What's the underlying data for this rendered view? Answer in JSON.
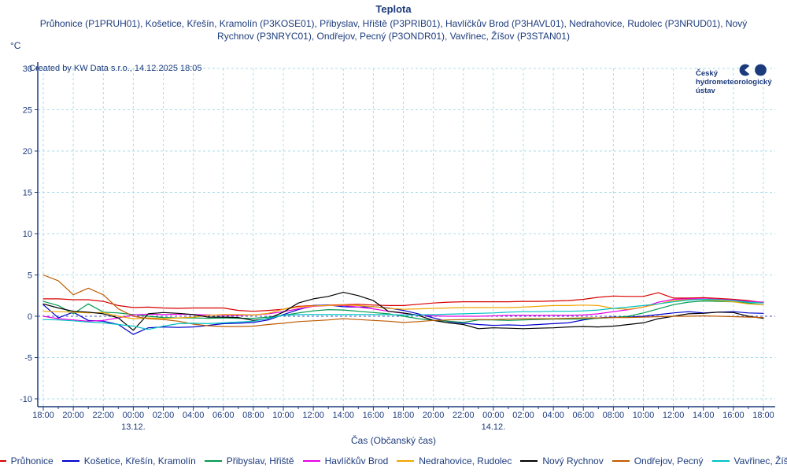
{
  "title": "Teplota",
  "subtitle": "Průhonice (P1PRUH01), Košetice, Křešín, Kramolín (P3KOSE01), Přibyslav, Hřiště (P3PRIB01), Havlíčkův Brod (P3HAVL01), Nedrahovice, Rudolec (P3NRUD01), Nový Rychnov (P3NRYC01), Ondřejov, Pecný (P3ONDR01), Vavřinec, Žíšov (P3STAN01)",
  "y_unit": "°C",
  "created_by": "Created by KW Data s.r.o., 14.12.2025 18:05",
  "logo": {
    "line1": "Český",
    "line2": "hydrometeorologický",
    "line3": "ústav",
    "color": "#1c3b7c"
  },
  "colors": {
    "text_navy": "#1c3b7c",
    "axis": "#1c3b7c",
    "grid": "#aadcea",
    "zero_line": "#4053cc",
    "background": "#ffffff"
  },
  "chart_data": {
    "type": "line",
    "title": "Teplota",
    "xlabel": "Čas (Občanský čas)",
    "ylabel": "°C",
    "ylim": [
      -10,
      30
    ],
    "grid": true,
    "legend_position": "bottom",
    "x_range_hours": 48,
    "sampling": "hourly values, t=0 at 18:00 of 12.12., t=48 at 18:00 of 14.12.",
    "x_tick_labels": [
      "18:00",
      "20:00",
      "22:00",
      "00:00",
      "02:00",
      "04:00",
      "06:00",
      "08:00",
      "10:00",
      "12:00",
      "14:00",
      "16:00",
      "18:00",
      "20:00",
      "22:00",
      "00:00",
      "02:00",
      "04:00",
      "06:00",
      "08:00",
      "10:00",
      "12:00",
      "14:00",
      "16:00",
      "18:00"
    ],
    "day_labels": [
      {
        "label": "13.12.",
        "tick_index": 3
      },
      {
        "label": "14.12.",
        "tick_index": 15
      }
    ],
    "y_ticks": [
      30,
      25,
      20,
      15,
      10,
      5,
      0,
      -5,
      -10
    ],
    "series": [
      {
        "name": "Průhonice",
        "color": "#d90000",
        "values": [
          2.1,
          2.1,
          2.0,
          2.0,
          1.8,
          1.3,
          1.05,
          1.1,
          1.0,
          0.95,
          1.0,
          1.0,
          1.0,
          0.7,
          0.6,
          0.7,
          0.85,
          1.2,
          1.3,
          1.35,
          1.4,
          1.45,
          1.35,
          1.3,
          1.3,
          1.45,
          1.6,
          1.7,
          1.75,
          1.75,
          1.75,
          1.75,
          1.8,
          1.8,
          1.85,
          1.9,
          2.05,
          2.3,
          2.45,
          2.4,
          2.4,
          2.85,
          2.2,
          2.2,
          2.25,
          2.15,
          2.05,
          1.9,
          1.65
        ]
      },
      {
        "name": "Košetice, Křešín, Kramolín",
        "color": "#0000cc",
        "values": [
          1.4,
          -0.2,
          0.5,
          -0.5,
          -0.6,
          -1.0,
          -2.2,
          -1.4,
          -1.3,
          -1.35,
          -1.3,
          -1.1,
          -0.9,
          -0.85,
          -0.75,
          -0.45,
          0.2,
          0.8,
          1.3,
          1.35,
          1.15,
          1.1,
          1.15,
          1.0,
          0.7,
          0.3,
          -0.2,
          -0.65,
          -0.85,
          -1.0,
          -1.1,
          -1.05,
          -1.1,
          -1.0,
          -0.9,
          -0.8,
          -0.45,
          -0.2,
          -0.1,
          -0.1,
          0.0,
          0.2,
          0.4,
          0.55,
          0.4,
          0.5,
          0.55,
          0.4,
          0.35
        ]
      },
      {
        "name": "Přibyslav, Hřiště",
        "color": "#009a4d",
        "values": [
          1.8,
          1.3,
          0.3,
          1.5,
          0.5,
          0.4,
          0.2,
          0.0,
          -0.15,
          -0.2,
          -0.2,
          -0.25,
          -0.2,
          -0.25,
          -0.25,
          -0.1,
          0.1,
          0.4,
          0.65,
          0.8,
          0.75,
          0.6,
          0.45,
          0.3,
          0.0,
          -0.3,
          -0.5,
          -0.6,
          -0.75,
          -0.45,
          -0.45,
          -0.5,
          -0.45,
          -0.4,
          -0.35,
          -0.35,
          -0.35,
          -0.25,
          -0.15,
          0.0,
          0.4,
          0.9,
          1.4,
          1.7,
          1.85,
          1.8,
          1.75,
          1.6,
          1.4
        ]
      },
      {
        "name": "Havlíčkův Brod",
        "color": "#e600e6",
        "values": [
          0.0,
          -0.3,
          -0.45,
          -0.6,
          -0.5,
          -0.2,
          0.15,
          0.25,
          0.2,
          0.25,
          0.2,
          0.15,
          0.1,
          0.1,
          0.15,
          0.3,
          0.55,
          0.9,
          1.2,
          1.3,
          1.3,
          1.1,
          0.9,
          0.6,
          0.35,
          0.15,
          0.05,
          0.0,
          0.0,
          0.0,
          0.05,
          0.1,
          0.1,
          0.1,
          0.1,
          0.1,
          0.15,
          0.3,
          0.55,
          0.8,
          1.1,
          1.7,
          2.05,
          2.1,
          2.1,
          2.05,
          1.95,
          1.8,
          1.7
        ]
      },
      {
        "name": "Nedrahovice, Rudolec",
        "color": "#f0a500",
        "values": [
          0.6,
          0.55,
          0.5,
          0.4,
          0.45,
          0.0,
          -0.3,
          -0.2,
          -0.3,
          -0.2,
          -0.1,
          0.1,
          0.2,
          0.2,
          0.15,
          0.35,
          0.85,
          1.1,
          1.25,
          1.3,
          1.35,
          1.3,
          1.15,
          0.95,
          0.85,
          0.9,
          0.95,
          1.0,
          1.05,
          1.05,
          1.05,
          1.05,
          1.1,
          1.2,
          1.3,
          1.3,
          1.35,
          1.3,
          0.95,
          0.85,
          1.1,
          1.5,
          1.9,
          2.0,
          2.0,
          1.9,
          1.75,
          1.5,
          1.4
        ]
      },
      {
        "name": "Nový Rychnov",
        "color": "#000000",
        "values": [
          1.5,
          1.0,
          0.6,
          0.5,
          0.3,
          -0.2,
          -1.7,
          0.3,
          0.45,
          0.35,
          0.2,
          -0.1,
          -0.1,
          -0.15,
          -0.5,
          -0.3,
          0.5,
          1.6,
          2.1,
          2.4,
          2.9,
          2.5,
          1.9,
          0.6,
          0.4,
          0.1,
          -0.5,
          -0.8,
          -1.0,
          -1.5,
          -1.4,
          -1.45,
          -1.5,
          -1.45,
          -1.4,
          -1.3,
          -1.25,
          -1.3,
          -1.2,
          -1.0,
          -0.8,
          -0.3,
          0.0,
          0.3,
          0.35,
          0.5,
          0.45,
          0.0,
          -0.25
        ]
      },
      {
        "name": "Ondřejov, Pecný",
        "color": "#bf5b00",
        "values": [
          5.0,
          4.3,
          2.6,
          3.4,
          2.6,
          0.9,
          0.0,
          -0.3,
          -0.4,
          -0.6,
          -0.95,
          -1.15,
          -1.25,
          -1.25,
          -1.2,
          -1.0,
          -0.85,
          -0.65,
          -0.55,
          -0.45,
          -0.3,
          -0.4,
          -0.5,
          -0.6,
          -0.75,
          -0.65,
          -0.5,
          -0.45,
          -0.4,
          -0.4,
          -0.4,
          -0.35,
          -0.3,
          -0.3,
          -0.3,
          -0.25,
          -0.2,
          -0.2,
          -0.15,
          -0.15,
          -0.1,
          -0.05,
          0.0,
          0.0,
          0.05,
          0.0,
          -0.05,
          -0.1,
          -0.15
        ]
      },
      {
        "name": "Vavřinec, Žíšov",
        "color": "#00c2c2",
        "values": [
          -0.4,
          -0.45,
          -0.55,
          -0.7,
          -0.8,
          -1.0,
          -1.2,
          -1.6,
          -1.2,
          -0.9,
          -0.85,
          -0.9,
          -0.8,
          -0.7,
          -0.6,
          -0.25,
          0.1,
          0.2,
          0.2,
          0.2,
          0.2,
          0.2,
          0.2,
          0.2,
          0.15,
          0.15,
          0.2,
          0.25,
          0.3,
          0.35,
          0.4,
          0.5,
          0.55,
          0.55,
          0.6,
          0.6,
          0.65,
          0.75,
          0.95,
          1.1,
          1.3,
          1.5,
          1.75,
          1.95,
          2.05,
          2.0,
          1.9,
          1.7,
          1.6
        ]
      }
    ]
  }
}
